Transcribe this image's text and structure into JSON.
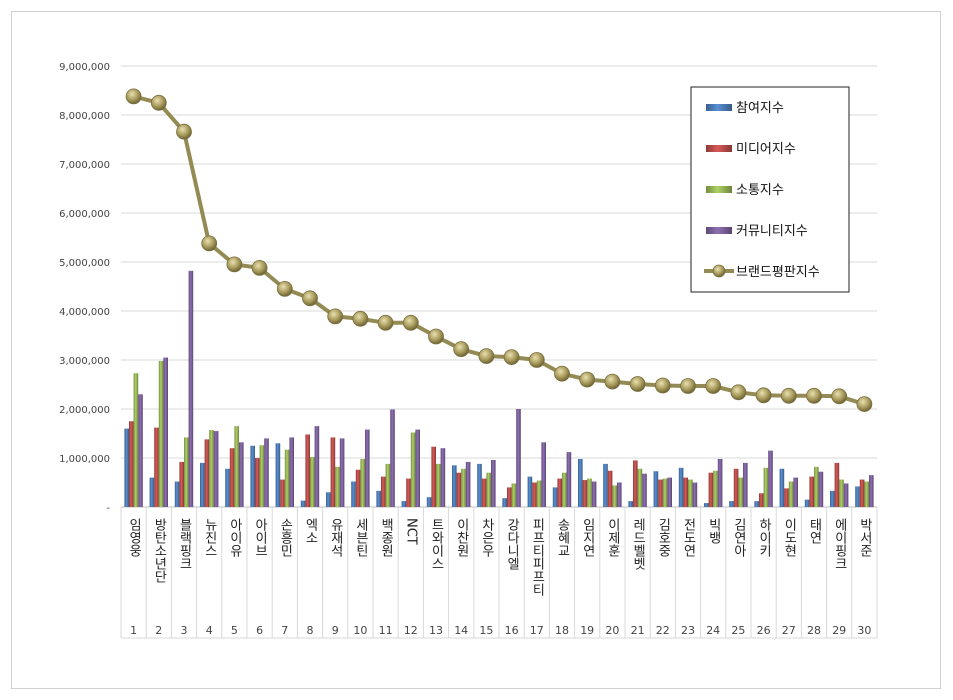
{
  "chart_data": {
    "type": "bar",
    "y_axis": {
      "ylim": [
        0,
        9000000
      ],
      "ticks": [
        "-",
        "1,000,000",
        "2,000,000",
        "3,000,000",
        "4,000,000",
        "5,000,000",
        "6,000,000",
        "7,000,000",
        "8,000,000",
        "9,000,000"
      ],
      "grid": true
    },
    "categories": [
      "임영웅",
      "방탄소년단",
      "블랙핑크",
      "뉴진스",
      "아이유",
      "아이브",
      "손흥민",
      "엑소",
      "유재석",
      "세븐틴",
      "백종원",
      "NCT",
      "트와이스",
      "이찬원",
      "차은우",
      "강다니엘",
      "피프티피프티",
      "송혜교",
      "임지연",
      "이제훈",
      "레드벨벳",
      "김호중",
      "전도연",
      "빅뱅",
      "김연아",
      "하이키",
      "이도현",
      "태연",
      "에이핑크",
      "박서준"
    ],
    "ranks": [
      "1",
      "2",
      "3",
      "4",
      "5",
      "6",
      "7",
      "8",
      "9",
      "10",
      "11",
      "12",
      "13",
      "14",
      "15",
      "16",
      "17",
      "18",
      "19",
      "20",
      "21",
      "22",
      "23",
      "24",
      "25",
      "26",
      "27",
      "28",
      "29",
      "30"
    ],
    "legend_position": "top-right",
    "series": [
      {
        "name": "참여지수",
        "kind": "bar",
        "color": "#4f81bd",
        "values": [
          1600000,
          600000,
          520000,
          900000,
          780000,
          1250000,
          1300000,
          130000,
          300000,
          520000,
          330000,
          120000,
          200000,
          850000,
          880000,
          180000,
          620000,
          400000,
          980000,
          880000,
          120000,
          730000,
          800000,
          80000,
          120000,
          120000,
          780000,
          150000,
          330000,
          420000
        ]
      },
      {
        "name": "미디어지수",
        "kind": "bar",
        "color": "#c0504d",
        "values": [
          1750000,
          1620000,
          920000,
          1380000,
          1200000,
          1000000,
          560000,
          1480000,
          1420000,
          760000,
          620000,
          580000,
          1230000,
          700000,
          580000,
          400000,
          500000,
          580000,
          550000,
          740000,
          950000,
          560000,
          600000,
          700000,
          780000,
          280000,
          380000,
          620000,
          900000,
          560000
        ]
      },
      {
        "name": "소통지수",
        "kind": "bar",
        "color": "#9bbb59",
        "values": [
          2730000,
          2980000,
          1420000,
          1570000,
          1650000,
          1260000,
          1170000,
          1020000,
          820000,
          980000,
          880000,
          1520000,
          880000,
          780000,
          700000,
          480000,
          540000,
          700000,
          580000,
          440000,
          780000,
          580000,
          560000,
          740000,
          600000,
          800000,
          520000,
          820000,
          560000,
          520000
        ]
      },
      {
        "name": "커뮤니티지수",
        "kind": "bar",
        "color": "#8064a2",
        "values": [
          2300000,
          3050000,
          4820000,
          1550000,
          1320000,
          1400000,
          1420000,
          1650000,
          1400000,
          1580000,
          1990000,
          1580000,
          1200000,
          920000,
          960000,
          2000000,
          1320000,
          1120000,
          520000,
          500000,
          680000,
          600000,
          500000,
          980000,
          900000,
          1150000,
          600000,
          720000,
          480000,
          650000
        ]
      },
      {
        "name": "브랜드평판지수",
        "kind": "line",
        "color": "#948a54",
        "values": [
          8380000,
          8250000,
          7660000,
          5380000,
          4950000,
          4880000,
          4450000,
          4260000,
          3890000,
          3840000,
          3760000,
          3760000,
          3480000,
          3220000,
          3080000,
          3060000,
          3000000,
          2720000,
          2600000,
          2560000,
          2510000,
          2480000,
          2470000,
          2470000,
          2340000,
          2280000,
          2270000,
          2270000,
          2260000,
          2100000
        ]
      }
    ]
  }
}
